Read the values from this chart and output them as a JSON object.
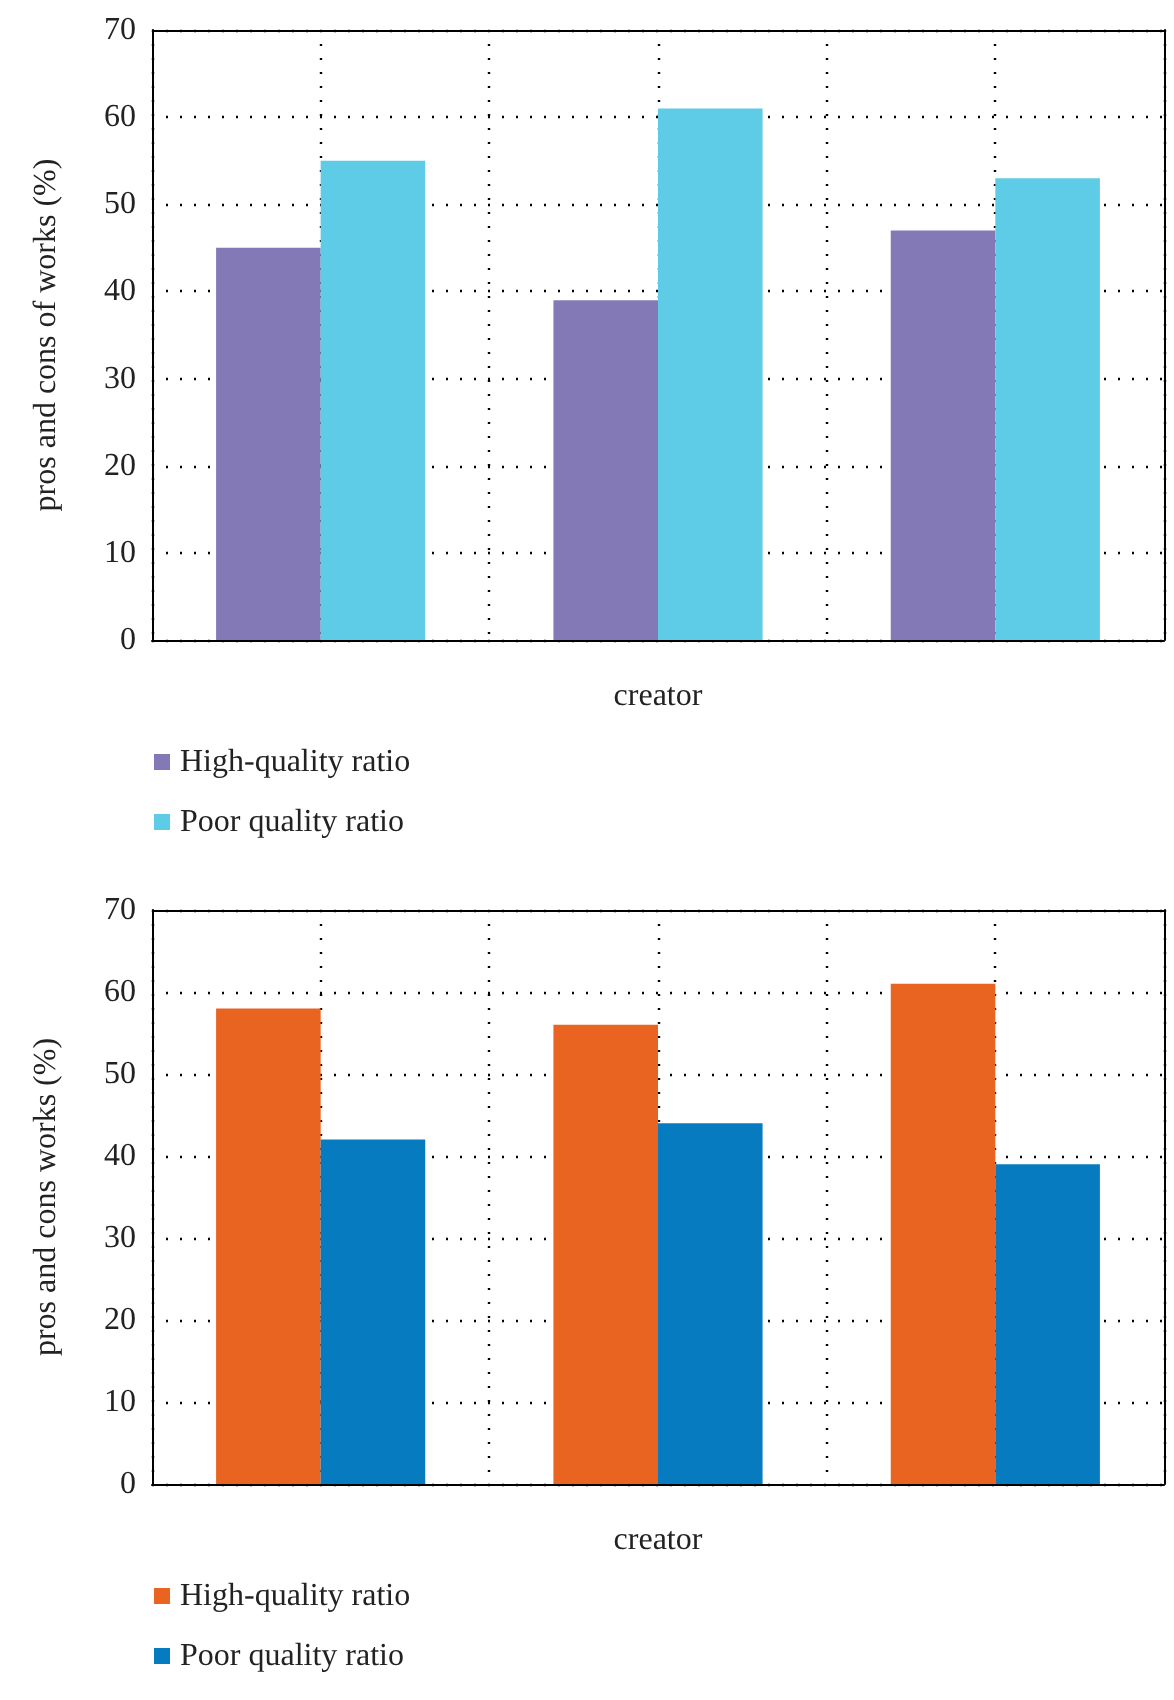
{
  "chart_data": [
    {
      "type": "bar",
      "xlabel": "creator",
      "ylabel": "pros and cons of works (%)",
      "categories": [
        null,
        null,
        null
      ],
      "ylim": [
        0,
        70
      ],
      "yticks": [
        0,
        10,
        20,
        30,
        40,
        50,
        60,
        70
      ],
      "grid": true,
      "legend": "bottom left",
      "series": [
        {
          "name": "High-quality ratio",
          "color": "#8379b7",
          "values": [
            45,
            39,
            47
          ]
        },
        {
          "name": "Poor quality ratio",
          "color": "#5ecbe7",
          "values": [
            55,
            61,
            53
          ]
        }
      ]
    },
    {
      "type": "bar",
      "xlabel": "creator",
      "ylabel": "pros and cons works (%)",
      "categories": [
        null,
        null,
        null
      ],
      "ylim": [
        0,
        70
      ],
      "yticks": [
        0,
        10,
        20,
        30,
        40,
        50,
        60,
        70
      ],
      "grid": true,
      "legend": "bottom left",
      "series": [
        {
          "name": "High-quality ratio",
          "color": "#e86420",
          "values": [
            58,
            56,
            61
          ]
        },
        {
          "name": "Poor quality ratio",
          "color": "#067bbf",
          "values": [
            42,
            44,
            39
          ]
        }
      ]
    }
  ]
}
